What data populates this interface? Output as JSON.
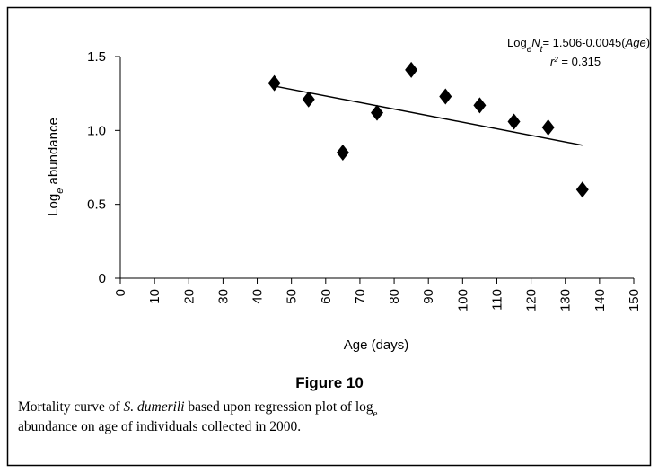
{
  "chart_data": {
    "type": "scatter",
    "x": [
      45,
      55,
      65,
      75,
      85,
      95,
      105,
      115,
      125,
      135
    ],
    "values": [
      1.32,
      1.21,
      0.85,
      1.12,
      1.41,
      1.23,
      1.17,
      1.06,
      1.02,
      0.6
    ],
    "color": "#000000",
    "xlim": [
      0,
      150
    ],
    "xticks": [
      0,
      10,
      20,
      30,
      40,
      50,
      60,
      70,
      80,
      90,
      100,
      110,
      120,
      130,
      140,
      150
    ],
    "ylim": [
      0,
      1.5
    ],
    "yticks": [
      0,
      0.5,
      {
        "value": 1,
        "label": "1.0"
      },
      1.5
    ],
    "xlabel": "Age (days)",
    "ylabel": [
      "Log",
      "e",
      " abundance"
    ],
    "trendline": {
      "x": [
        45,
        135
      ],
      "values": [
        1.3,
        0.9
      ]
    },
    "annotation": {
      "line1": [
        "Log",
        "e",
        "N",
        "t",
        "= 1.506-0.0045(",
        "Age",
        ")"
      ],
      "line2": [
        "r",
        "2",
        " = 0.315"
      ]
    }
  },
  "figure": {
    "label": "Figure 10",
    "caption_line1": [
      "Mortality curve of ",
      "S. dumerili",
      " based upon regression plot of log",
      "e"
    ],
    "caption_line2": "abundance on age of individuals collected in 2000."
  }
}
